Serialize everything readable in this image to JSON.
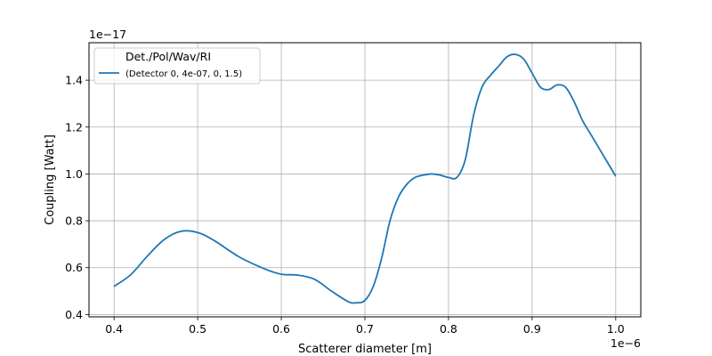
{
  "chart_data": {
    "type": "line",
    "xlabel": "Scatterer diameter [m]",
    "ylabel": "Coupling [Watt]",
    "x_offset_label": "1e−6",
    "y_offset_label": "1e−17",
    "xlim": [
      0.37,
      1.03
    ],
    "ylim": [
      0.39,
      1.56
    ],
    "x_ticks": [
      0.4,
      0.5,
      0.6,
      0.7,
      0.8,
      0.9,
      1.0
    ],
    "x_tick_labels": [
      "0.4",
      "0.5",
      "0.6",
      "0.7",
      "0.8",
      "0.9",
      "1.0"
    ],
    "y_ticks": [
      0.4,
      0.6,
      0.8,
      1.0,
      1.2,
      1.4
    ],
    "y_tick_labels": [
      "0.4",
      "0.6",
      "0.8",
      "1.0",
      "1.2",
      "1.4"
    ],
    "grid": true,
    "legend": {
      "title": "Det./Pol/Wav/RI",
      "placement": "top-left",
      "entries": [
        "(Detector 0, 4e-07, 0, 1.5)"
      ]
    },
    "series": [
      {
        "name": "(Detector 0, 4e-07, 0, 1.5)",
        "color": "#1f77b4",
        "x": [
          0.4,
          0.42,
          0.44,
          0.46,
          0.48,
          0.5,
          0.52,
          0.55,
          0.58,
          0.6,
          0.62,
          0.64,
          0.66,
          0.68,
          0.69,
          0.7,
          0.71,
          0.72,
          0.73,
          0.74,
          0.75,
          0.76,
          0.77,
          0.78,
          0.79,
          0.8,
          0.81,
          0.82,
          0.83,
          0.84,
          0.85,
          0.86,
          0.87,
          0.88,
          0.89,
          0.9,
          0.91,
          0.92,
          0.93,
          0.94,
          0.95,
          0.96,
          0.97,
          0.98,
          0.99,
          1.0
        ],
        "y": [
          0.52,
          0.57,
          0.65,
          0.72,
          0.755,
          0.75,
          0.715,
          0.645,
          0.595,
          0.572,
          0.568,
          0.55,
          0.5,
          0.455,
          0.45,
          0.46,
          0.52,
          0.64,
          0.8,
          0.9,
          0.955,
          0.985,
          0.995,
          1.0,
          0.995,
          0.985,
          0.985,
          1.06,
          1.25,
          1.37,
          1.42,
          1.46,
          1.5,
          1.51,
          1.49,
          1.43,
          1.37,
          1.36,
          1.38,
          1.37,
          1.31,
          1.23,
          1.17,
          1.11,
          1.05,
          0.99
        ]
      }
    ]
  }
}
